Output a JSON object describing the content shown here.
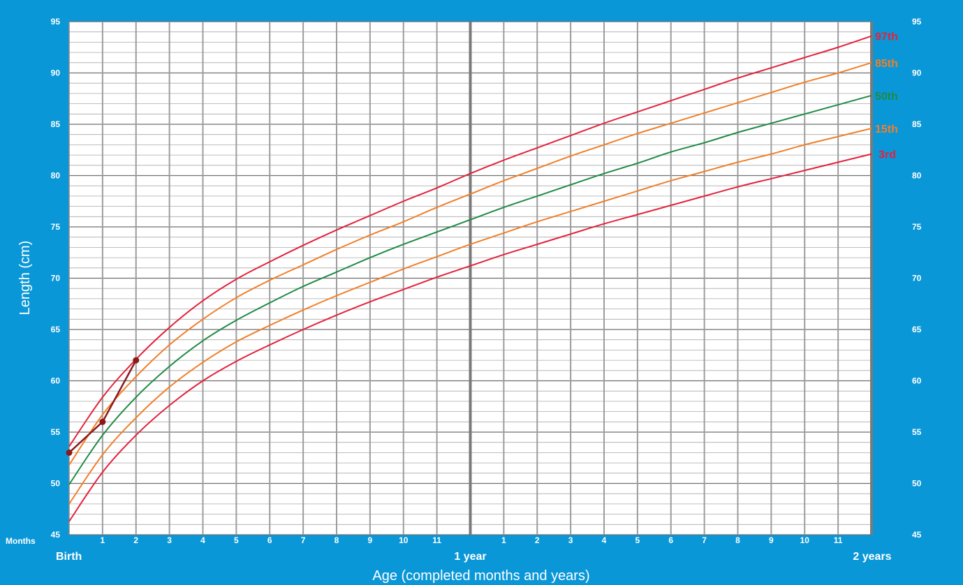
{
  "chart_data": {
    "type": "line",
    "ylabel": "Length (cm)",
    "xlabel": "Age (completed months and years)",
    "months_label": "Months",
    "x_unit": "months",
    "xlim": [
      0,
      24
    ],
    "ylim": [
      45,
      95
    ],
    "y_ticks": [
      45,
      50,
      55,
      60,
      65,
      70,
      75,
      80,
      85,
      90,
      95
    ],
    "x_tick_labels": [
      "1",
      "2",
      "3",
      "4",
      "5",
      "6",
      "7",
      "8",
      "9",
      "10",
      "11",
      "1",
      "2",
      "3",
      "4",
      "5",
      "6",
      "7",
      "8",
      "9",
      "10",
      "11"
    ],
    "milestones": [
      {
        "month": 0,
        "label": "Birth"
      },
      {
        "month": 12,
        "label": "1 year"
      },
      {
        "month": 24,
        "label": "2 years"
      }
    ],
    "grid": true,
    "x": [
      0,
      1,
      2,
      3,
      4,
      5,
      6,
      7,
      8,
      9,
      10,
      11,
      12,
      13,
      14,
      15,
      16,
      17,
      18,
      19,
      20,
      21,
      22,
      23,
      24
    ],
    "series": [
      {
        "name": "97th",
        "color": "#e3223c",
        "values": [
          53.6,
          58.4,
          62.1,
          65.2,
          67.8,
          69.9,
          71.6,
          73.2,
          74.7,
          76.1,
          77.5,
          78.8,
          80.2,
          81.5,
          82.7,
          83.9,
          85.1,
          86.2,
          87.3,
          88.4,
          89.5,
          90.5,
          91.5,
          92.5,
          93.6
        ]
      },
      {
        "name": "85th",
        "color": "#f07f2a",
        "values": [
          51.8,
          56.7,
          60.4,
          63.5,
          66.0,
          68.1,
          69.8,
          71.3,
          72.8,
          74.2,
          75.5,
          76.9,
          78.2,
          79.5,
          80.7,
          81.9,
          83.0,
          84.1,
          85.1,
          86.1,
          87.1,
          88.1,
          89.1,
          90.0,
          91.0
        ]
      },
      {
        "name": "50th",
        "color": "#1f8a45",
        "values": [
          49.9,
          54.7,
          58.4,
          61.4,
          63.9,
          65.9,
          67.6,
          69.2,
          70.6,
          72.0,
          73.3,
          74.5,
          75.7,
          76.9,
          78.0,
          79.1,
          80.2,
          81.2,
          82.3,
          83.2,
          84.2,
          85.1,
          86.0,
          86.9,
          87.8
        ]
      },
      {
        "name": "15th",
        "color": "#f07f2a",
        "values": [
          48.0,
          52.8,
          56.4,
          59.4,
          61.8,
          63.8,
          65.4,
          66.9,
          68.3,
          69.6,
          70.9,
          72.1,
          73.3,
          74.4,
          75.5,
          76.5,
          77.5,
          78.5,
          79.5,
          80.4,
          81.3,
          82.1,
          83.0,
          83.8,
          84.6
        ]
      },
      {
        "name": "3rd",
        "color": "#e3223c",
        "values": [
          46.3,
          51.1,
          54.7,
          57.6,
          60.0,
          61.9,
          63.5,
          65.0,
          66.4,
          67.7,
          68.9,
          70.1,
          71.2,
          72.3,
          73.3,
          74.3,
          75.3,
          76.2,
          77.1,
          78.0,
          78.9,
          79.7,
          80.5,
          81.3,
          82.1
        ]
      }
    ],
    "measurements": {
      "color": "#8b1a1a",
      "points": [
        {
          "x": 0,
          "y": 53
        },
        {
          "x": 1,
          "y": 56
        },
        {
          "x": 2,
          "y": 62
        }
      ]
    }
  }
}
